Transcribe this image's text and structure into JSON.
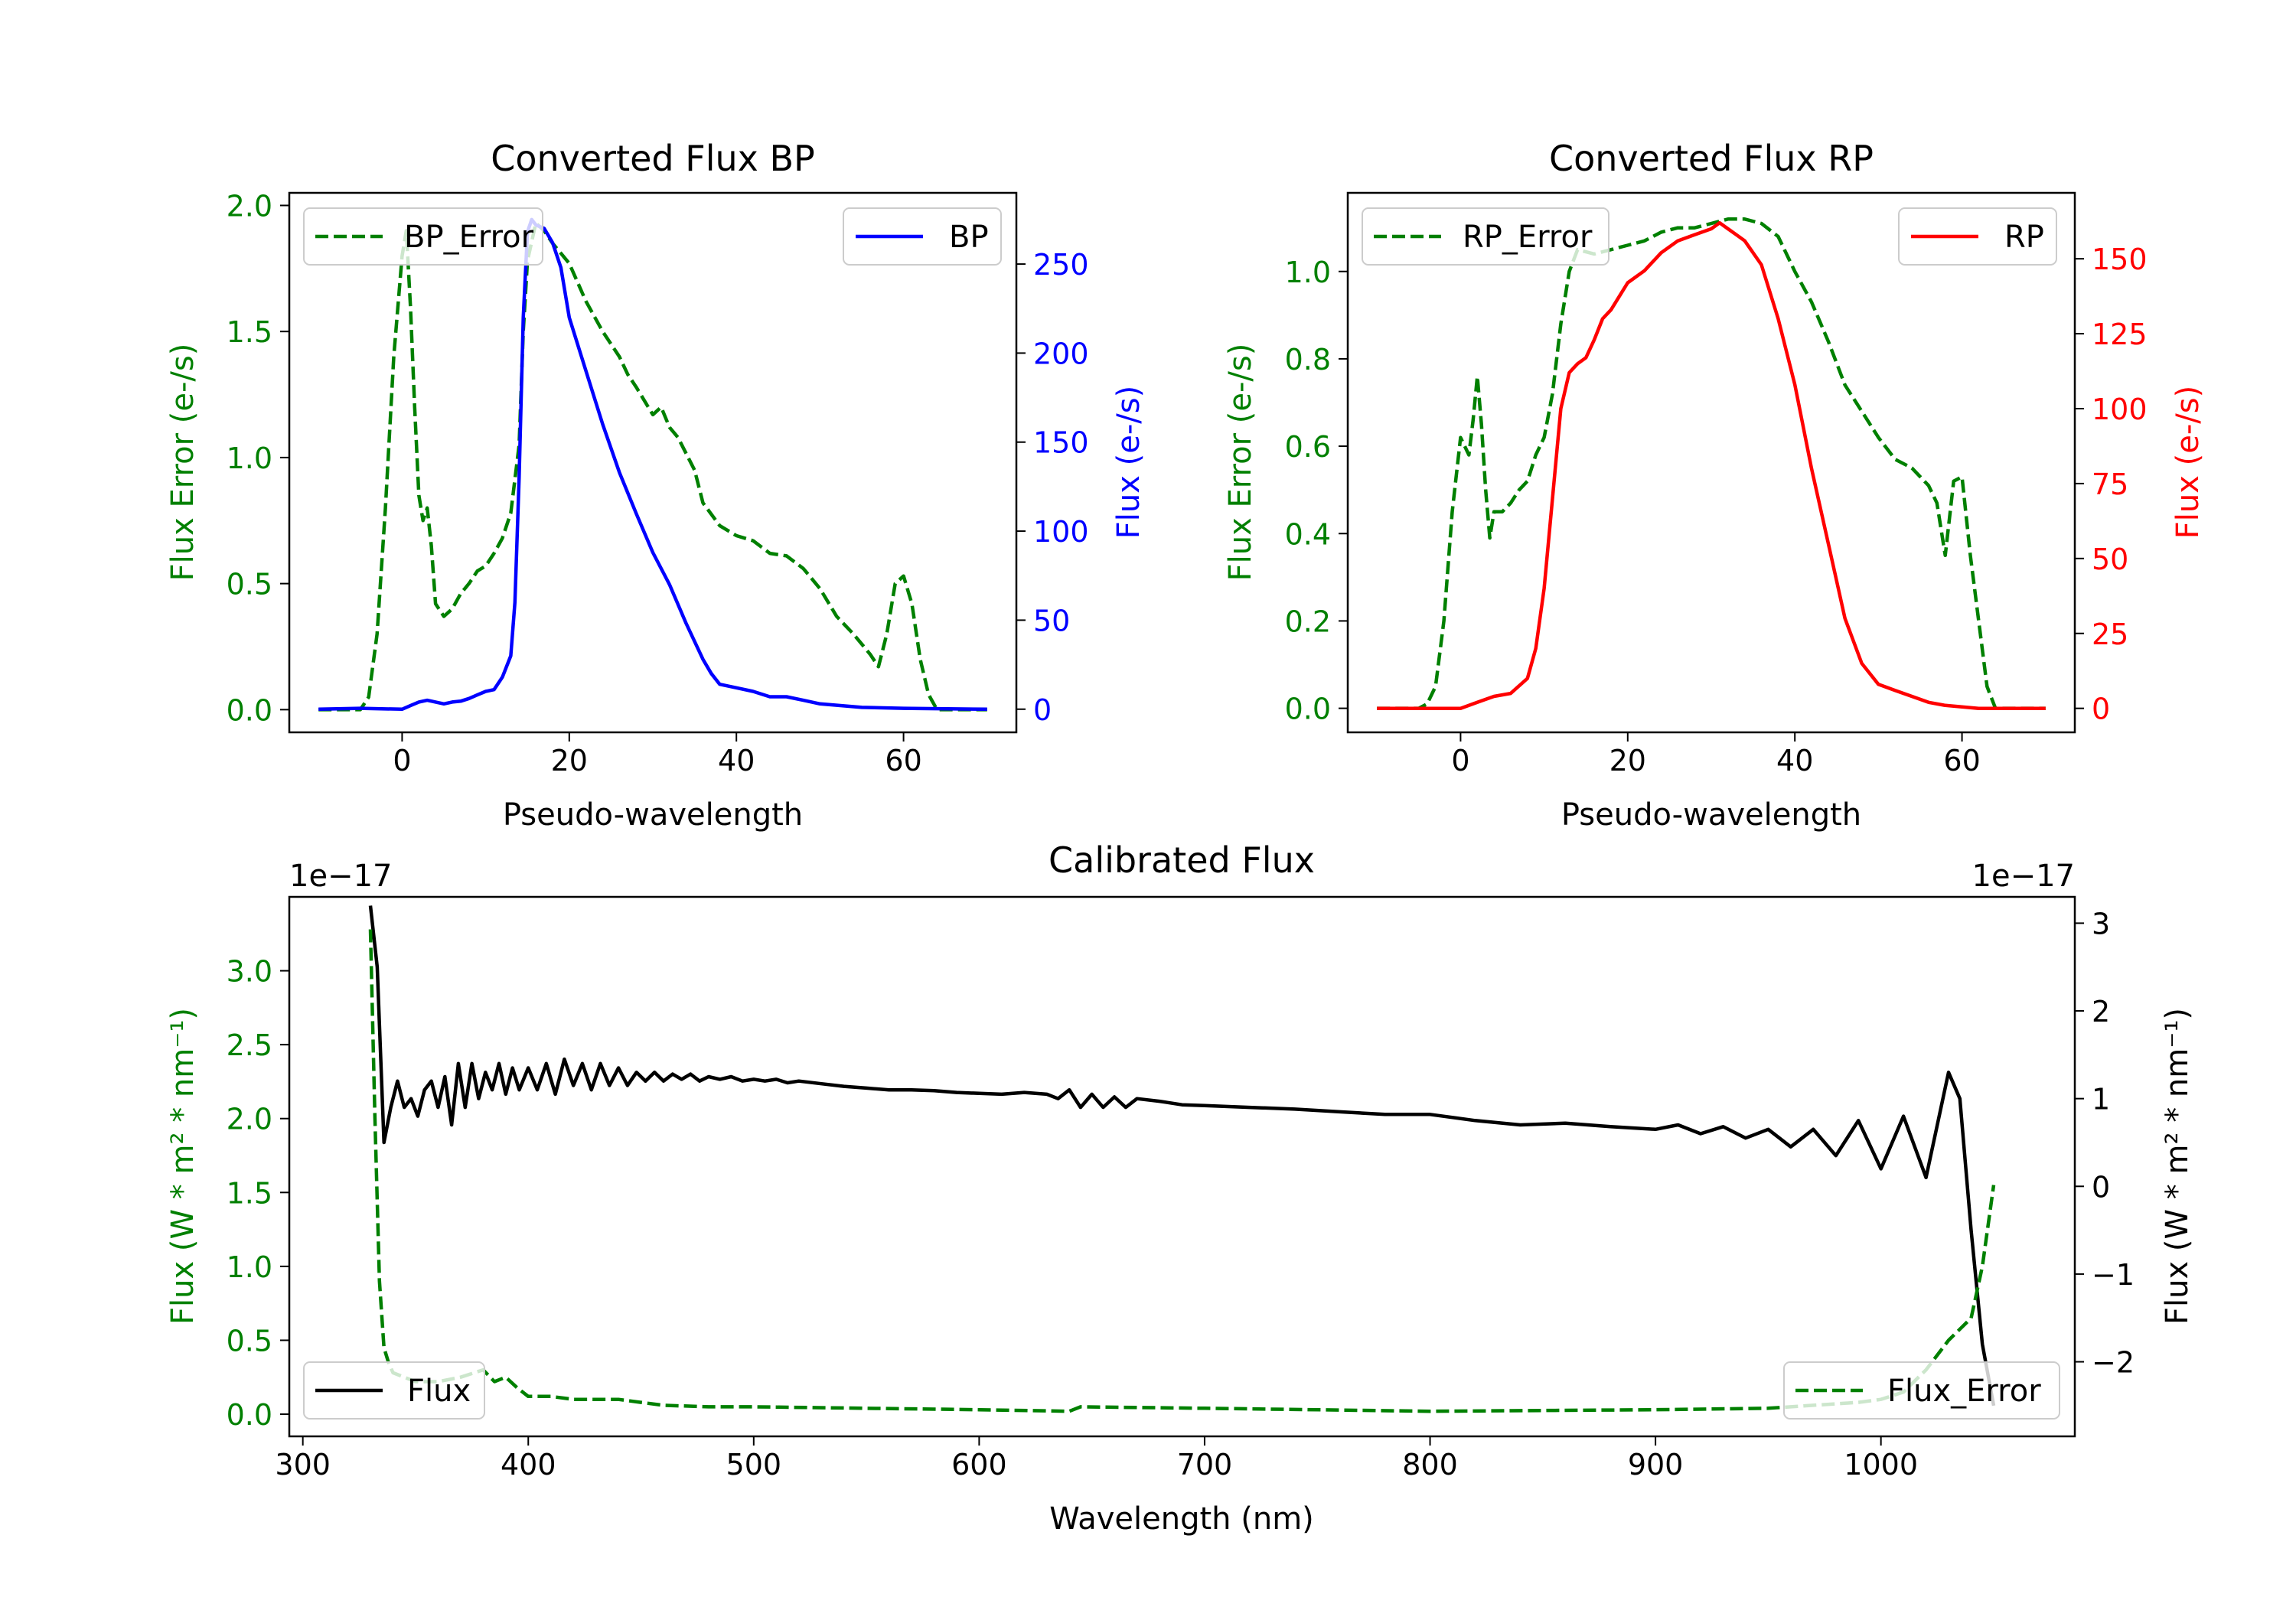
{
  "chart_data": [
    {
      "id": "bp",
      "type": "line",
      "title": "Converted Flux BP",
      "xlabel": "Pseudo-wavelength",
      "ylabel_left": "Flux Error (e-/s)",
      "ylabel_right": "Flux (e-/s)",
      "xlim": [
        -13.5,
        73.5
      ],
      "ylim_left": [
        -0.09,
        2.05
      ],
      "ylim_right": [
        -13,
        290
      ],
      "xticks": [
        0,
        20,
        40,
        60
      ],
      "yticks_left": [
        0.0,
        0.5,
        1.0,
        1.5,
        2.0
      ],
      "yticks_left_labels": [
        "0.0",
        "0.5",
        "1.0",
        "1.5",
        "2.0"
      ],
      "yticks_right": [
        0,
        50,
        100,
        150,
        200,
        250
      ],
      "yticks_right_labels": [
        "0",
        "50",
        "100",
        "150",
        "200",
        "250"
      ],
      "colors": {
        "left": "#008000",
        "right": "#0000ff"
      },
      "series": [
        {
          "name": "BP_Error",
          "axis": "left",
          "style": "dashed",
          "color": "#008000",
          "legend": "top-left",
          "x": [
            -10,
            -5,
            -4,
            -3,
            -2,
            -1,
            0,
            0.5,
            1,
            1.5,
            2,
            2.5,
            3,
            3.5,
            4,
            5,
            6,
            7,
            8,
            9,
            10,
            11,
            12,
            13,
            14,
            14.5,
            15,
            16,
            17,
            18,
            20,
            22,
            24,
            26,
            27,
            28,
            30,
            31,
            32,
            33,
            35,
            36,
            38,
            40,
            42,
            44,
            46,
            48,
            50,
            52,
            54,
            56,
            57,
            58,
            59,
            60,
            61,
            62,
            63,
            64,
            65,
            70
          ],
          "y": [
            0.0,
            0.0,
            0.05,
            0.3,
            0.8,
            1.4,
            1.8,
            1.9,
            1.6,
            1.2,
            0.85,
            0.75,
            0.8,
            0.65,
            0.42,
            0.37,
            0.4,
            0.46,
            0.5,
            0.55,
            0.57,
            0.62,
            0.68,
            0.78,
            1.05,
            1.5,
            1.78,
            1.93,
            1.9,
            1.85,
            1.77,
            1.62,
            1.5,
            1.4,
            1.33,
            1.28,
            1.17,
            1.2,
            1.12,
            1.08,
            0.95,
            0.82,
            0.73,
            0.69,
            0.67,
            0.62,
            0.61,
            0.56,
            0.48,
            0.37,
            0.3,
            0.22,
            0.17,
            0.3,
            0.5,
            0.53,
            0.42,
            0.2,
            0.06,
            0.0,
            0.0,
            0.0
          ]
        },
        {
          "name": "BP",
          "axis": "right",
          "style": "solid",
          "color": "#0000ff",
          "legend": "top-right",
          "x": [
            -10,
            -5,
            0,
            1,
            2,
            3,
            4,
            5,
            6,
            7,
            8,
            9,
            10,
            11,
            12,
            13,
            13.5,
            14,
            14.5,
            15,
            15.5,
            16,
            17,
            18,
            19,
            20,
            22,
            24,
            26,
            28,
            30,
            32,
            34,
            36,
            37,
            38,
            40,
            42,
            44,
            46,
            48,
            50,
            55,
            60,
            70
          ],
          "y": [
            0,
            0.5,
            0,
            2,
            4,
            5,
            4,
            3,
            4,
            4.5,
            6,
            8,
            10,
            11,
            18,
            30,
            60,
            130,
            220,
            268,
            275,
            272,
            270,
            262,
            248,
            220,
            190,
            160,
            133,
            110,
            88,
            70,
            48,
            28,
            20,
            14,
            12,
            10,
            7,
            7,
            5,
            3,
            1,
            0.5,
            0
          ]
        }
      ]
    },
    {
      "id": "rp",
      "type": "line",
      "title": "Converted Flux RP",
      "xlabel": "Pseudo-wavelength",
      "ylabel_left": "Flux Error (e-/s)",
      "ylabel_right": "Flux (e-/s)",
      "xlim": [
        -13.5,
        73.5
      ],
      "ylim_left": [
        -0.055,
        1.18
      ],
      "ylim_right": [
        -8,
        172
      ],
      "xticks": [
        0,
        20,
        40,
        60
      ],
      "yticks_left": [
        0.0,
        0.2,
        0.4,
        0.6,
        0.8,
        1.0
      ],
      "yticks_left_labels": [
        "0.0",
        "0.2",
        "0.4",
        "0.6",
        "0.8",
        "1.0"
      ],
      "yticks_right": [
        0,
        25,
        50,
        75,
        100,
        125,
        150
      ],
      "yticks_right_labels": [
        "0",
        "25",
        "50",
        "75",
        "100",
        "125",
        "150"
      ],
      "colors": {
        "left": "#008000",
        "right": "#ff0000"
      },
      "series": [
        {
          "name": "RP_Error",
          "axis": "left",
          "style": "dashed",
          "color": "#008000",
          "legend": "top-left",
          "x": [
            -10,
            -5,
            -4,
            -3,
            -2,
            -1,
            0,
            1,
            1.5,
            2,
            2.5,
            3,
            3.5,
            4,
            5,
            6,
            7,
            8,
            9,
            10,
            11,
            12,
            13,
            14,
            16,
            18,
            20,
            22,
            24,
            26,
            28,
            30,
            32,
            34,
            36,
            38,
            40,
            42,
            44,
            46,
            48,
            50,
            52,
            54,
            56,
            57,
            58,
            59,
            60,
            61,
            62,
            63,
            64,
            70
          ],
          "y": [
            0.0,
            0.0,
            0.01,
            0.05,
            0.2,
            0.45,
            0.62,
            0.58,
            0.66,
            0.76,
            0.65,
            0.5,
            0.39,
            0.45,
            0.45,
            0.47,
            0.5,
            0.52,
            0.58,
            0.62,
            0.72,
            0.88,
            1.0,
            1.05,
            1.04,
            1.05,
            1.06,
            1.07,
            1.09,
            1.1,
            1.1,
            1.11,
            1.12,
            1.12,
            1.11,
            1.08,
            1.0,
            0.93,
            0.84,
            0.74,
            0.68,
            0.62,
            0.57,
            0.55,
            0.51,
            0.47,
            0.35,
            0.52,
            0.53,
            0.35,
            0.2,
            0.05,
            0.0,
            0.0
          ]
        },
        {
          "name": "RP",
          "axis": "right",
          "style": "solid",
          "color": "#ff0000",
          "legend": "top-right",
          "x": [
            -10,
            -5,
            0,
            2,
            4,
            6,
            8,
            9,
            10,
            11,
            12,
            13,
            14,
            15,
            16,
            17,
            18,
            20,
            22,
            24,
            26,
            28,
            30,
            31,
            32,
            33,
            34,
            36,
            38,
            40,
            42,
            44,
            46,
            48,
            50,
            52,
            54,
            56,
            58,
            60,
            62,
            70
          ],
          "y": [
            0,
            0,
            0,
            2,
            4,
            5,
            10,
            20,
            40,
            70,
            100,
            112,
            115,
            117,
            123,
            130,
            133,
            142,
            146,
            152,
            156,
            158,
            160,
            162,
            160,
            158,
            156,
            148,
            130,
            108,
            80,
            55,
            30,
            15,
            8,
            6,
            4,
            2,
            1,
            0.5,
            0,
            0
          ]
        }
      ]
    },
    {
      "id": "cal",
      "type": "line",
      "title": "Calibrated Flux",
      "xlabel": "Wavelength (nm)",
      "ylabel_left": "Flux (W * m² * nm⁻¹)",
      "ylabel_right": "Flux (W * m² * nm⁻¹)",
      "offset_left": "1e−17",
      "offset_right": "1e−17",
      "xlim": [
        294,
        1086
      ],
      "ylim_left": [
        -0.15,
        3.5
      ],
      "ylim_right": [
        -2.85,
        3.3
      ],
      "xticks": [
        300,
        400,
        500,
        600,
        700,
        800,
        900,
        1000
      ],
      "yticks_left": [
        0.0,
        0.5,
        1.0,
        1.5,
        2.0,
        2.5,
        3.0
      ],
      "yticks_left_labels": [
        "0.0",
        "0.5",
        "1.0",
        "1.5",
        "2.0",
        "2.5",
        "3.0"
      ],
      "yticks_right": [
        -2,
        -1,
        0,
        1,
        2,
        3
      ],
      "yticks_right_labels": [
        "−2",
        "−1",
        "0",
        "1",
        "2",
        "3"
      ],
      "colors": {
        "left": "#008000",
        "right": "#000000"
      },
      "series": [
        {
          "name": "Flux",
          "axis": "right",
          "style": "solid",
          "color": "#000000",
          "legend": "bottom-left",
          "x": [
            330,
            333,
            336,
            339,
            342,
            345,
            348,
            351,
            354,
            357,
            360,
            363,
            366,
            369,
            372,
            375,
            378,
            381,
            384,
            387,
            390,
            393,
            396,
            400,
            404,
            408,
            412,
            416,
            420,
            424,
            428,
            432,
            436,
            440,
            444,
            448,
            452,
            456,
            460,
            464,
            468,
            472,
            476,
            480,
            485,
            490,
            495,
            500,
            505,
            510,
            515,
            520,
            530,
            540,
            550,
            560,
            570,
            580,
            590,
            600,
            610,
            620,
            630,
            635,
            640,
            645,
            650,
            655,
            660,
            665,
            670,
            680,
            690,
            700,
            720,
            740,
            760,
            780,
            800,
            820,
            840,
            860,
            880,
            900,
            910,
            920,
            930,
            940,
            950,
            960,
            970,
            980,
            990,
            1000,
            1010,
            1020,
            1030,
            1035,
            1040,
            1045,
            1050
          ],
          "y": [
            3.2,
            2.5,
            0.5,
            0.9,
            1.2,
            0.9,
            1.0,
            0.8,
            1.1,
            1.2,
            0.9,
            1.25,
            0.7,
            1.4,
            0.9,
            1.4,
            1.0,
            1.3,
            1.1,
            1.4,
            1.05,
            1.35,
            1.1,
            1.35,
            1.1,
            1.4,
            1.05,
            1.45,
            1.15,
            1.4,
            1.1,
            1.4,
            1.15,
            1.35,
            1.15,
            1.3,
            1.2,
            1.3,
            1.2,
            1.28,
            1.22,
            1.28,
            1.2,
            1.25,
            1.22,
            1.25,
            1.2,
            1.22,
            1.2,
            1.22,
            1.18,
            1.2,
            1.17,
            1.14,
            1.12,
            1.1,
            1.1,
            1.09,
            1.07,
            1.06,
            1.05,
            1.07,
            1.05,
            1.0,
            1.1,
            0.9,
            1.05,
            0.9,
            1.02,
            0.9,
            1.0,
            0.97,
            0.93,
            0.92,
            0.9,
            0.88,
            0.85,
            0.82,
            0.82,
            0.75,
            0.7,
            0.72,
            0.68,
            0.65,
            0.7,
            0.6,
            0.68,
            0.55,
            0.65,
            0.45,
            0.65,
            0.35,
            0.75,
            0.2,
            0.8,
            0.1,
            1.3,
            1.0,
            -0.5,
            -1.8,
            -2.5
          ]
        },
        {
          "name": "Flux_Error",
          "axis": "left",
          "style": "dashed",
          "color": "#008000",
          "legend": "bottom-right",
          "x": [
            330,
            332,
            334,
            336,
            338,
            340,
            345,
            350,
            360,
            370,
            380,
            385,
            390,
            395,
            400,
            410,
            420,
            430,
            440,
            450,
            460,
            480,
            500,
            550,
            600,
            640,
            645,
            700,
            800,
            900,
            950,
            970,
            990,
            1000,
            1010,
            1020,
            1030,
            1040,
            1045,
            1050
          ],
          "y": [
            3.28,
            2.0,
            0.9,
            0.45,
            0.35,
            0.28,
            0.25,
            0.22,
            0.22,
            0.25,
            0.3,
            0.22,
            0.25,
            0.18,
            0.12,
            0.12,
            0.1,
            0.1,
            0.1,
            0.08,
            0.06,
            0.05,
            0.05,
            0.04,
            0.03,
            0.02,
            0.05,
            0.04,
            0.02,
            0.03,
            0.04,
            0.06,
            0.08,
            0.1,
            0.15,
            0.3,
            0.5,
            0.65,
            1.0,
            1.55
          ]
        }
      ]
    }
  ]
}
